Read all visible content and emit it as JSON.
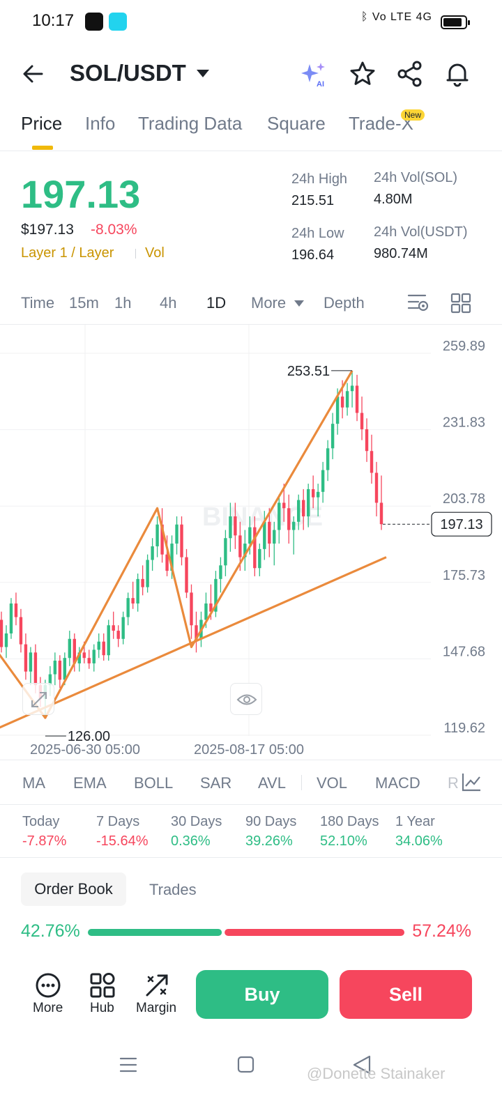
{
  "status_bar": {
    "time": "10:17",
    "right_text": "ᛒ  Vo LTE  4G"
  },
  "header": {
    "pair": "SOL/USDT"
  },
  "tabs": [
    {
      "label": "Price"
    },
    {
      "label": "Info"
    },
    {
      "label": "Trading Data"
    },
    {
      "label": "Square"
    },
    {
      "label": "Trade-X"
    }
  ],
  "new_badge": "New",
  "price": {
    "last": "197.13",
    "usd": "$197.13",
    "change": "-8.03%",
    "tag": "Layer 1 / Layer",
    "vol_tag": "Vol"
  },
  "stats": {
    "high_label": "24h High",
    "high": "215.51",
    "low_label": "24h Low",
    "low": "196.64",
    "vol_sol_label": "24h Vol(SOL)",
    "vol_sol": "4.80M",
    "vol_usdt_label": "24h Vol(USDT)",
    "vol_usdt": "980.74M"
  },
  "timeframes": [
    "Time",
    "15m",
    "1h",
    "4h",
    "1D",
    "More",
    "Depth"
  ],
  "chart_data": {
    "type": "candlestick",
    "y_ticks": [
      "259.89",
      "231.83",
      "203.78",
      "175.73",
      "147.68",
      "119.62"
    ],
    "x_ticks": [
      "2025-06-30 05:00",
      "2025-08-17 05:00"
    ],
    "high_marker": "253.51",
    "low_marker": "126.00",
    "current_price": "197.13",
    "watermark": "BINANCE",
    "ylim": [
      119.62,
      259.89
    ],
    "candles": [
      [
        162,
        165,
        150,
        152
      ],
      [
        152,
        160,
        148,
        157
      ],
      [
        157,
        170,
        155,
        168
      ],
      [
        168,
        172,
        160,
        163
      ],
      [
        163,
        166,
        150,
        153
      ],
      [
        153,
        157,
        140,
        143
      ],
      [
        143,
        152,
        138,
        150
      ],
      [
        150,
        153,
        135,
        138
      ],
      [
        138,
        141,
        130,
        133
      ],
      [
        133,
        140,
        126,
        138
      ],
      [
        138,
        145,
        134,
        142
      ],
      [
        142,
        150,
        138,
        147
      ],
      [
        147,
        149,
        137,
        140
      ],
      [
        140,
        150,
        138,
        148
      ],
      [
        148,
        158,
        145,
        155
      ],
      [
        155,
        157,
        143,
        146
      ],
      [
        146,
        152,
        143,
        150
      ],
      [
        150,
        154,
        146,
        148
      ],
      [
        148,
        151,
        144,
        146
      ],
      [
        146,
        153,
        143,
        151
      ],
      [
        151,
        157,
        148,
        154
      ],
      [
        154,
        157,
        147,
        149
      ],
      [
        149,
        162,
        147,
        160
      ],
      [
        160,
        165,
        155,
        158
      ],
      [
        158,
        160,
        152,
        155
      ],
      [
        155,
        165,
        153,
        163
      ],
      [
        163,
        172,
        160,
        170
      ],
      [
        170,
        176,
        166,
        168
      ],
      [
        168,
        179,
        165,
        177
      ],
      [
        177,
        182,
        171,
        174
      ],
      [
        174,
        186,
        172,
        184
      ],
      [
        184,
        192,
        180,
        189
      ],
      [
        189,
        200,
        185,
        197
      ],
      [
        197,
        203,
        183,
        186
      ],
      [
        186,
        193,
        178,
        180
      ],
      [
        180,
        193,
        177,
        190
      ],
      [
        190,
        200,
        186,
        197
      ],
      [
        197,
        200,
        182,
        185
      ],
      [
        185,
        188,
        170,
        172
      ],
      [
        172,
        175,
        155,
        160
      ],
      [
        160,
        165,
        150,
        155
      ],
      [
        155,
        165,
        152,
        162
      ],
      [
        162,
        172,
        159,
        168
      ],
      [
        168,
        175,
        162,
        165
      ],
      [
        165,
        180,
        163,
        177
      ],
      [
        177,
        185,
        172,
        182
      ],
      [
        182,
        195,
        178,
        192
      ],
      [
        192,
        205,
        187,
        200
      ],
      [
        200,
        205,
        188,
        193
      ],
      [
        193,
        198,
        180,
        185
      ],
      [
        185,
        195,
        180,
        190
      ],
      [
        190,
        200,
        186,
        196
      ],
      [
        196,
        200,
        178,
        181
      ],
      [
        181,
        190,
        178,
        188
      ],
      [
        188,
        202,
        184,
        198
      ],
      [
        198,
        203,
        185,
        190
      ],
      [
        190,
        198,
        182,
        195
      ],
      [
        195,
        208,
        190,
        205
      ],
      [
        205,
        212,
        198,
        203
      ],
      [
        203,
        208,
        190,
        195
      ],
      [
        195,
        200,
        186,
        198
      ],
      [
        198,
        208,
        195,
        206
      ],
      [
        206,
        210,
        195,
        200
      ],
      [
        200,
        212,
        196,
        210
      ],
      [
        210,
        215,
        203,
        207
      ],
      [
        207,
        212,
        200,
        209
      ],
      [
        209,
        220,
        205,
        217
      ],
      [
        217,
        228,
        213,
        225
      ],
      [
        225,
        238,
        221,
        234
      ],
      [
        234,
        247,
        230,
        244
      ],
      [
        244,
        250,
        236,
        240
      ],
      [
        240,
        249,
        237,
        246
      ],
      [
        246,
        253.51,
        240,
        248
      ],
      [
        248,
        252,
        235,
        238
      ],
      [
        238,
        244,
        228,
        232
      ],
      [
        232,
        236,
        220,
        224
      ],
      [
        224,
        230,
        212,
        216
      ],
      [
        216,
        220,
        200,
        205
      ],
      [
        205,
        215,
        195,
        197.13
      ]
    ]
  },
  "indicators": [
    "MA",
    "EMA",
    "BOLL",
    "SAR",
    "AVL",
    "VOL",
    "MACD",
    "R"
  ],
  "performance": [
    {
      "label": "Today",
      "value": "-7.87%"
    },
    {
      "label": "7 Days",
      "value": "-15.64%"
    },
    {
      "label": "30 Days",
      "value": "0.36%"
    },
    {
      "label": "90 Days",
      "value": "39.26%"
    },
    {
      "label": "180 Days",
      "value": "52.10%"
    },
    {
      "label": "1 Year",
      "value": "34.06%"
    }
  ],
  "order_book": {
    "tab_active": "Order Book",
    "tab_other": "Trades",
    "bid_ratio": "42.76%",
    "ask_ratio": "57.24%",
    "bid_fraction": 0.4276
  },
  "actions": {
    "more": "More",
    "hub": "Hub",
    "margin": "Margin",
    "buy": "Buy",
    "sell": "Sell"
  },
  "colors": {
    "up": "#2ebd85",
    "down": "#f6465d",
    "accent": "#f0b90b",
    "trend": "#ea8a3c"
  },
  "watermark_text": "@Donette Stainaker"
}
